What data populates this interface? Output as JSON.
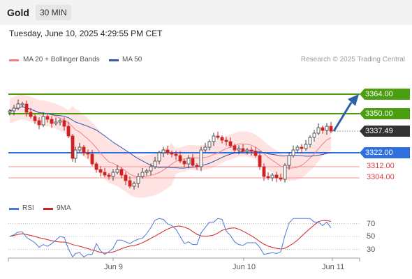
{
  "header": {
    "instrument": "Gold",
    "timeframe": "30 MIN"
  },
  "timestamp": "Tuesday, June 10, 2025 4:29:55 PM CET",
  "legend": {
    "ma20": "MA 20 + Bollinger Bands",
    "ma50": "MA 50",
    "credit": "Research © 2025 Trading Central"
  },
  "levels": [
    {
      "label": "3364.00",
      "value": 3364.0,
      "kind": "resistance",
      "color": "#4a9e0f"
    },
    {
      "label": "3350.00",
      "value": 3350.0,
      "kind": "resistance",
      "color": "#4a9e0f"
    },
    {
      "label": "3337.49",
      "value": 3337.49,
      "kind": "last-price",
      "color": "#333333"
    },
    {
      "label": "3322.00",
      "value": 3322.0,
      "kind": "pivot",
      "color": "#2f6fe0"
    },
    {
      "label": "3312.00",
      "value": 3312.0,
      "kind": "support",
      "color": "#e04040"
    },
    {
      "label": "3304.00",
      "value": 3304.0,
      "kind": "support",
      "color": "#e04040"
    }
  ],
  "rsi": {
    "rsi_label": "RSI",
    "ma_label": "9MA",
    "levels": [
      "70",
      "50",
      "30"
    ]
  },
  "xaxis": [
    "Jun 9",
    "Jun 10",
    "Jun 11"
  ],
  "colors": {
    "bull": "#3a3a3a",
    "bear": "#cc2222",
    "ma50": "#3355aa",
    "ma20": "#f08080",
    "bands": "#ffd9d9",
    "rsi": "#4a7ad8",
    "rsi_ma": "#d42020"
  }
}
